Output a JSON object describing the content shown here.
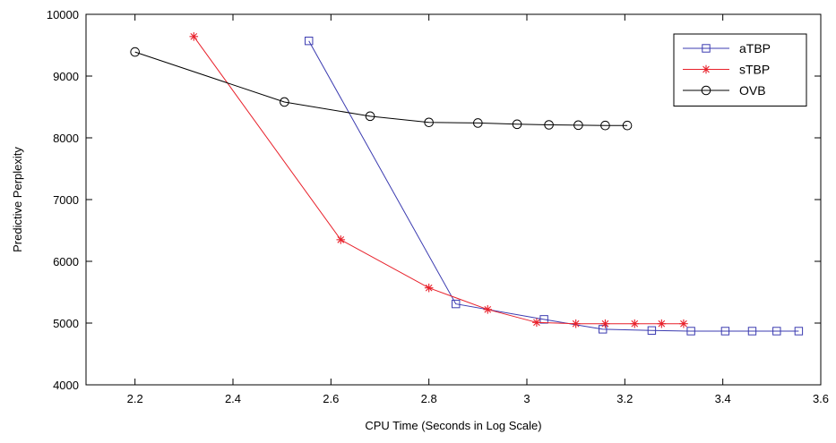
{
  "chart_data": {
    "type": "line",
    "title": "",
    "xlabel": "CPU Time (Seconds in Log Scale)",
    "ylabel": "Predictive Perplexity",
    "xlim": [
      2.1,
      3.6
    ],
    "ylim": [
      4000,
      10000
    ],
    "xticks": [
      2.2,
      2.4,
      2.6,
      2.8,
      3.0,
      3.2,
      3.4,
      3.6
    ],
    "xtick_labels": [
      "2.2",
      "2.4",
      "2.6",
      "2.8",
      "3",
      "3.2",
      "3.4",
      "3.6"
    ],
    "yticks": [
      4000,
      5000,
      6000,
      7000,
      8000,
      9000,
      10000
    ],
    "ytick_labels": [
      "4000",
      "5000",
      "6000",
      "7000",
      "8000",
      "9000",
      "10000"
    ],
    "grid": false,
    "legend_position": "top-right",
    "series": [
      {
        "name": "aTBP",
        "color": "#3b3bb0",
        "marker": "square",
        "x": [
          2.555,
          2.855,
          3.035,
          3.155,
          3.255,
          3.335,
          3.405,
          3.46,
          3.51,
          3.555
        ],
        "y": [
          9570,
          5310,
          5060,
          4900,
          4880,
          4870,
          4870,
          4870,
          4870,
          4870
        ]
      },
      {
        "name": "sTBP",
        "color": "#e8202a",
        "marker": "asterisk",
        "x": [
          2.32,
          2.62,
          2.8,
          2.92,
          3.02,
          3.1,
          3.16,
          3.22,
          3.275,
          3.32
        ],
        "y": [
          9640,
          6350,
          5570,
          5220,
          5010,
          4990,
          4990,
          4990,
          4990,
          4990
        ]
      },
      {
        "name": "OVB",
        "color": "#000000",
        "marker": "circle",
        "x": [
          2.2,
          2.505,
          2.68,
          2.8,
          2.9,
          2.98,
          3.045,
          3.105,
          3.16,
          3.205
        ],
        "y": [
          9390,
          8580,
          8350,
          8250,
          8240,
          8220,
          8210,
          8205,
          8200,
          8200
        ]
      }
    ]
  }
}
